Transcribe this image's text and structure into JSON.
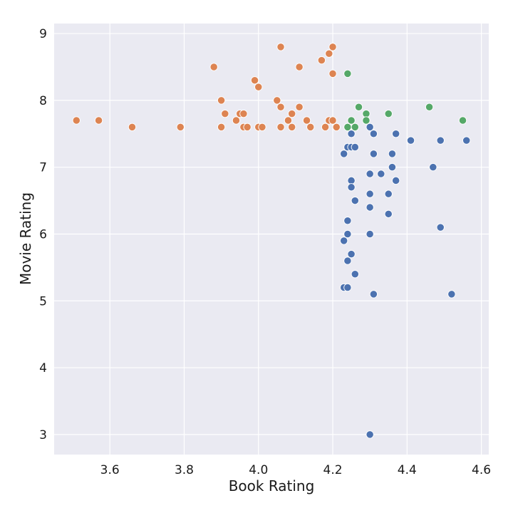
{
  "chart_data": {
    "type": "scatter",
    "title": "",
    "xlabel": "Book Rating",
    "ylabel": "Movie Rating",
    "xlim": [
      3.45,
      4.62
    ],
    "ylim": [
      2.7,
      9.15
    ],
    "xticks": [
      3.6,
      3.8,
      4.0,
      4.2,
      4.4,
      4.6
    ],
    "yticks": [
      3,
      4,
      5,
      6,
      7,
      8,
      9
    ],
    "xtick_labels": [
      "3.6",
      "3.8",
      "4.0",
      "4.2",
      "4.4",
      "4.6"
    ],
    "ytick_labels": [
      "3",
      "4",
      "5",
      "6",
      "7",
      "8",
      "9"
    ],
    "grid": true,
    "legend": "none",
    "background": "#eaeaf2",
    "series": [
      {
        "color": "#dd8452",
        "points": [
          [
            3.51,
            7.7
          ],
          [
            3.57,
            7.7
          ],
          [
            3.66,
            7.6
          ],
          [
            3.79,
            7.6
          ],
          [
            3.88,
            8.5
          ],
          [
            3.9,
            8.0
          ],
          [
            3.9,
            7.6
          ],
          [
            3.91,
            7.8
          ],
          [
            3.94,
            7.7
          ],
          [
            3.95,
            7.8
          ],
          [
            3.96,
            7.8
          ],
          [
            3.96,
            7.6
          ],
          [
            3.97,
            7.6
          ],
          [
            3.99,
            8.3
          ],
          [
            4.0,
            8.2
          ],
          [
            4.0,
            7.6
          ],
          [
            4.01,
            7.6
          ],
          [
            4.05,
            8.0
          ],
          [
            4.06,
            8.8
          ],
          [
            4.06,
            7.9
          ],
          [
            4.06,
            7.6
          ],
          [
            4.08,
            7.7
          ],
          [
            4.09,
            7.8
          ],
          [
            4.09,
            7.6
          ],
          [
            4.11,
            8.5
          ],
          [
            4.11,
            7.9
          ],
          [
            4.13,
            7.7
          ],
          [
            4.14,
            7.6
          ],
          [
            4.17,
            8.6
          ],
          [
            4.18,
            7.6
          ],
          [
            4.19,
            8.7
          ],
          [
            4.19,
            7.7
          ],
          [
            4.2,
            8.8
          ],
          [
            4.2,
            8.4
          ],
          [
            4.2,
            7.7
          ],
          [
            4.21,
            7.6
          ]
        ]
      },
      {
        "color": "#55a868",
        "points": [
          [
            4.24,
            8.4
          ],
          [
            4.24,
            7.6
          ],
          [
            4.25,
            7.7
          ],
          [
            4.26,
            7.6
          ],
          [
            4.27,
            7.9
          ],
          [
            4.29,
            7.8
          ],
          [
            4.29,
            7.7
          ],
          [
            4.35,
            7.8
          ],
          [
            4.46,
            7.9
          ],
          [
            4.55,
            7.7
          ]
        ]
      },
      {
        "color": "#4c72b0",
        "points": [
          [
            4.23,
            7.2
          ],
          [
            4.24,
            7.3
          ],
          [
            4.25,
            7.5
          ],
          [
            4.25,
            7.3
          ],
          [
            4.26,
            7.3
          ],
          [
            4.25,
            6.8
          ],
          [
            4.25,
            6.7
          ],
          [
            4.26,
            6.5
          ],
          [
            4.24,
            6.2
          ],
          [
            4.24,
            6.0
          ],
          [
            4.23,
            5.9
          ],
          [
            4.25,
            5.7
          ],
          [
            4.24,
            5.6
          ],
          [
            4.26,
            5.4
          ],
          [
            4.23,
            5.2
          ],
          [
            4.24,
            5.2
          ],
          [
            4.3,
            7.6
          ],
          [
            4.31,
            7.5
          ],
          [
            4.31,
            7.2
          ],
          [
            4.3,
            6.9
          ],
          [
            4.33,
            6.9
          ],
          [
            4.3,
            6.6
          ],
          [
            4.3,
            6.4
          ],
          [
            4.3,
            6.0
          ],
          [
            4.31,
            5.1
          ],
          [
            4.3,
            3.0
          ],
          [
            4.37,
            7.5
          ],
          [
            4.36,
            7.2
          ],
          [
            4.36,
            7.0
          ],
          [
            4.37,
            6.8
          ],
          [
            4.35,
            6.6
          ],
          [
            4.35,
            6.3
          ],
          [
            4.41,
            7.4
          ],
          [
            4.47,
            7.0
          ],
          [
            4.49,
            7.4
          ],
          [
            4.49,
            6.1
          ],
          [
            4.52,
            5.1
          ],
          [
            4.56,
            7.4
          ]
        ]
      }
    ]
  }
}
